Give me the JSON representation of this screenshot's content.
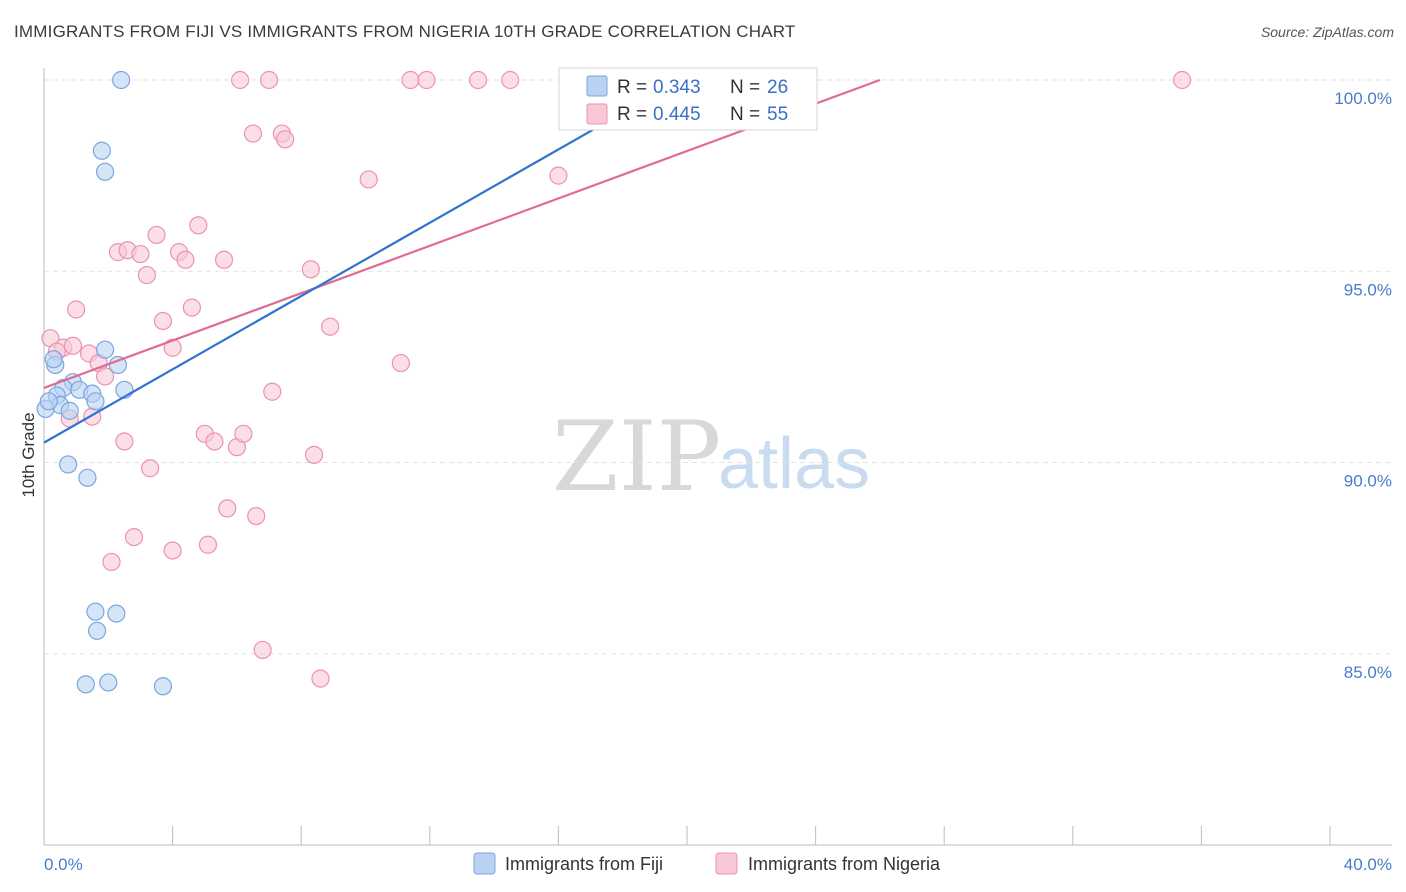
{
  "title": "IMMIGRANTS FROM FIJI VS IMMIGRANTS FROM NIGERIA 10TH GRADE CORRELATION CHART",
  "source": "Source: ZipAtlas.com",
  "watermark": {
    "zip": "ZIP",
    "atlas": "atlas"
  },
  "colors": {
    "fiji_fill": "#b9d2f2",
    "fiji_stroke": "#7aa6e0",
    "fiji_line": "#2f74d0",
    "nigeria_fill": "#f8c8d6",
    "nigeria_stroke": "#eb93b0",
    "nigeria_line": "#e06b93",
    "tick_text": "#4a7cc9",
    "grid": "#e2e2e2"
  },
  "legend": {
    "rows": [
      {
        "r_label": "R =",
        "r_value": "0.343",
        "n_label": "N =",
        "n_value": "26"
      },
      {
        "r_label": "R =",
        "r_value": "0.445",
        "n_label": "N =",
        "n_value": "55"
      }
    ]
  },
  "chart_data": {
    "type": "scatter",
    "title": "IMMIGRANTS FROM FIJI VS IMMIGRANTS FROM NIGERIA 10TH GRADE CORRELATION CHART",
    "xlabel": "",
    "ylabel": "10th Grade",
    "xlim": [
      0,
      40
    ],
    "ylim": [
      80.5,
      100.5
    ],
    "x_tick_labels": [
      "0.0%",
      "40.0%"
    ],
    "y_ticks": [
      {
        "value": 100,
        "label": "100.0%"
      },
      {
        "value": 95,
        "label": "95.0%"
      },
      {
        "value": 90,
        "label": "90.0%"
      },
      {
        "value": 85,
        "label": "85.0%"
      }
    ],
    "grid": true,
    "series": [
      {
        "name": "Immigrants from Fiji",
        "r": 0.343,
        "n": 26,
        "trend": {
          "x": [
            0.0,
            20.0
          ],
          "y": [
            90.52,
            100.1
          ]
        },
        "points": [
          {
            "x": 2.4,
            "y": 100.0
          },
          {
            "x": 1.8,
            "y": 98.15
          },
          {
            "x": 1.9,
            "y": 97.6
          },
          {
            "x": 0.35,
            "y": 92.55
          },
          {
            "x": 1.9,
            "y": 92.95
          },
          {
            "x": 2.3,
            "y": 92.55
          },
          {
            "x": 0.3,
            "y": 92.7
          },
          {
            "x": 0.9,
            "y": 92.1
          },
          {
            "x": 0.6,
            "y": 91.95
          },
          {
            "x": 1.1,
            "y": 91.9
          },
          {
            "x": 1.5,
            "y": 91.8
          },
          {
            "x": 0.4,
            "y": 91.75
          },
          {
            "x": 1.6,
            "y": 91.6
          },
          {
            "x": 2.5,
            "y": 91.9
          },
          {
            "x": 0.5,
            "y": 91.5
          },
          {
            "x": 0.8,
            "y": 91.35
          },
          {
            "x": 0.05,
            "y": 91.4
          },
          {
            "x": 0.75,
            "y": 89.95
          },
          {
            "x": 1.35,
            "y": 89.6
          },
          {
            "x": 1.6,
            "y": 86.1
          },
          {
            "x": 2.25,
            "y": 86.05
          },
          {
            "x": 1.65,
            "y": 85.6
          },
          {
            "x": 1.3,
            "y": 84.2
          },
          {
            "x": 2.0,
            "y": 84.25
          },
          {
            "x": 3.7,
            "y": 84.15
          },
          {
            "x": 0.15,
            "y": 91.6
          }
        ]
      },
      {
        "name": "Immigrants from Nigeria",
        "r": 0.445,
        "n": 55,
        "trend": {
          "x": [
            0.0,
            26.0
          ],
          "y": [
            91.95,
            100.0
          ]
        },
        "points": [
          {
            "x": 6.1,
            "y": 100.0
          },
          {
            "x": 7.0,
            "y": 100.0
          },
          {
            "x": 11.4,
            "y": 100.0
          },
          {
            "x": 11.9,
            "y": 100.0
          },
          {
            "x": 13.5,
            "y": 100.0
          },
          {
            "x": 14.5,
            "y": 100.0
          },
          {
            "x": 16.5,
            "y": 100.0
          },
          {
            "x": 17.2,
            "y": 100.0
          },
          {
            "x": 35.4,
            "y": 100.0
          },
          {
            "x": 6.5,
            "y": 98.6
          },
          {
            "x": 7.4,
            "y": 98.6
          },
          {
            "x": 7.5,
            "y": 98.45
          },
          {
            "x": 10.1,
            "y": 97.4
          },
          {
            "x": 16.0,
            "y": 97.5
          },
          {
            "x": 4.8,
            "y": 96.2
          },
          {
            "x": 3.5,
            "y": 95.95
          },
          {
            "x": 2.3,
            "y": 95.5
          },
          {
            "x": 2.6,
            "y": 95.55
          },
          {
            "x": 3.0,
            "y": 95.45
          },
          {
            "x": 4.2,
            "y": 95.5
          },
          {
            "x": 4.4,
            "y": 95.3
          },
          {
            "x": 5.6,
            "y": 95.3
          },
          {
            "x": 3.2,
            "y": 94.9
          },
          {
            "x": 8.3,
            "y": 95.05
          },
          {
            "x": 1.0,
            "y": 94.0
          },
          {
            "x": 4.6,
            "y": 94.05
          },
          {
            "x": 3.7,
            "y": 93.7
          },
          {
            "x": 8.9,
            "y": 93.55
          },
          {
            "x": 0.2,
            "y": 93.25
          },
          {
            "x": 0.6,
            "y": 93.0
          },
          {
            "x": 0.4,
            "y": 92.9
          },
          {
            "x": 1.4,
            "y": 92.85
          },
          {
            "x": 4.0,
            "y": 93.0
          },
          {
            "x": 1.7,
            "y": 92.6
          },
          {
            "x": 11.1,
            "y": 92.6
          },
          {
            "x": 1.9,
            "y": 92.25
          },
          {
            "x": 7.1,
            "y": 91.85
          },
          {
            "x": 1.5,
            "y": 91.2
          },
          {
            "x": 0.8,
            "y": 91.15
          },
          {
            "x": 2.5,
            "y": 90.55
          },
          {
            "x": 5.0,
            "y": 90.75
          },
          {
            "x": 5.3,
            "y": 90.55
          },
          {
            "x": 6.0,
            "y": 90.4
          },
          {
            "x": 6.2,
            "y": 90.75
          },
          {
            "x": 3.3,
            "y": 89.85
          },
          {
            "x": 8.4,
            "y": 90.2
          },
          {
            "x": 5.7,
            "y": 88.8
          },
          {
            "x": 6.6,
            "y": 88.6
          },
          {
            "x": 2.8,
            "y": 88.05
          },
          {
            "x": 5.1,
            "y": 87.85
          },
          {
            "x": 4.0,
            "y": 87.7
          },
          {
            "x": 2.1,
            "y": 87.4
          },
          {
            "x": 6.8,
            "y": 85.1
          },
          {
            "x": 8.6,
            "y": 84.35
          },
          {
            "x": 0.9,
            "y": 93.05
          }
        ]
      }
    ]
  }
}
